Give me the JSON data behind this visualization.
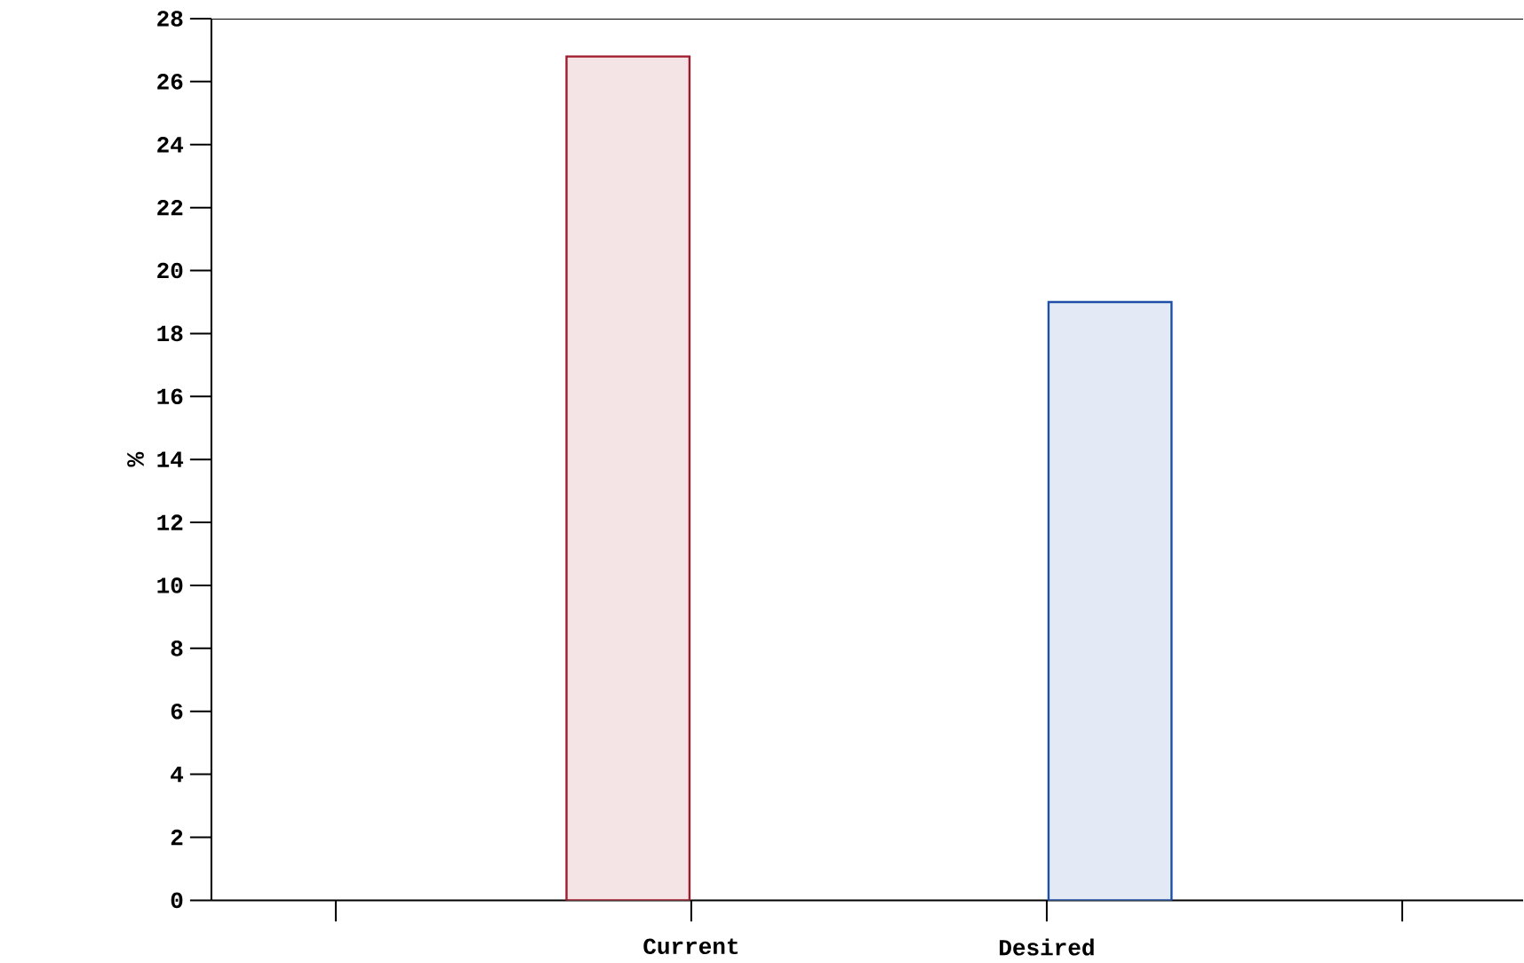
{
  "chart_data": {
    "type": "bar",
    "ylabel": "%",
    "categories": [
      null,
      "Current",
      "Desired",
      null
    ],
    "values": [
      null,
      26.8,
      19.0,
      null
    ],
    "colors": [
      "#a01c2c",
      "#a01c2c",
      "#1f4fa8",
      "#1f4fa8"
    ],
    "ylim": [
      0,
      28
    ],
    "yticks": [
      0,
      2,
      4,
      6,
      8,
      10,
      12,
      14,
      16,
      18,
      20,
      22,
      24,
      26,
      28
    ]
  }
}
